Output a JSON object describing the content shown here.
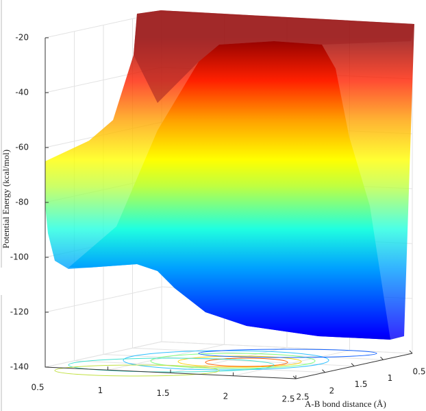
{
  "chart_data": {
    "type": "surface3d",
    "zlabel": "Potential Energy (kcal/mol)",
    "ylabel": "A-B bond distance (Å)",
    "xlim": [
      0.5,
      2.5
    ],
    "ylim": [
      0.5,
      2.5
    ],
    "zlim": [
      -140,
      -20
    ],
    "xticks": [
      0.5,
      1,
      1.5,
      2,
      2.5
    ],
    "yticks": [
      0.5,
      1,
      1.5,
      2,
      2.5
    ],
    "zticks": [
      -20,
      -40,
      -60,
      -80,
      -100,
      -120,
      -140
    ],
    "grid": true
  }
}
